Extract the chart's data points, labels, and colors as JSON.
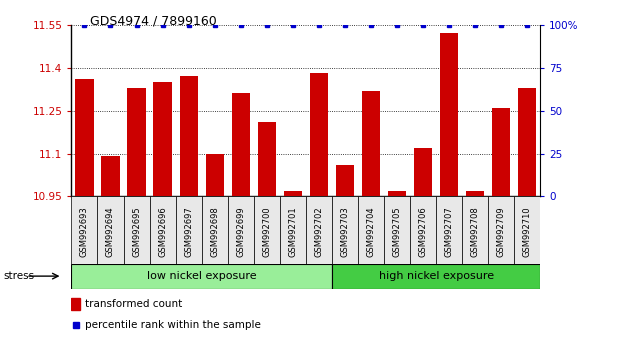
{
  "title": "GDS4974 / 7899160",
  "samples": [
    "GSM992693",
    "GSM992694",
    "GSM992695",
    "GSM992696",
    "GSM992697",
    "GSM992698",
    "GSM992699",
    "GSM992700",
    "GSM992701",
    "GSM992702",
    "GSM992703",
    "GSM992704",
    "GSM992705",
    "GSM992706",
    "GSM992707",
    "GSM992708",
    "GSM992709",
    "GSM992710"
  ],
  "values": [
    11.36,
    11.09,
    11.33,
    11.35,
    11.37,
    11.1,
    11.31,
    11.21,
    10.97,
    11.38,
    11.06,
    11.32,
    10.97,
    11.12,
    11.52,
    10.97,
    11.26,
    11.33
  ],
  "percentile": [
    100,
    100,
    100,
    100,
    100,
    100,
    100,
    100,
    100,
    100,
    100,
    100,
    100,
    100,
    100,
    100,
    100,
    100
  ],
  "ymin": 10.95,
  "ymax": 11.55,
  "yticks": [
    10.95,
    11.1,
    11.25,
    11.4,
    11.55
  ],
  "ytick_labels": [
    "10.95",
    "11.1",
    "11.25",
    "11.4",
    "11.55"
  ],
  "right_yticks": [
    0,
    25,
    50,
    75,
    100
  ],
  "right_ytick_labels": [
    "0",
    "25",
    "50",
    "75",
    "100%"
  ],
  "bar_color": "#cc0000",
  "dot_color": "#0000cc",
  "label_color_left": "#cc0000",
  "label_color_right": "#0000cc",
  "low_nickel_count": 10,
  "high_nickel_count": 8,
  "group1_label": "low nickel exposure",
  "group2_label": "high nickel exposure",
  "group1_color": "#99ee99",
  "group2_color": "#44cc44",
  "stress_label": "stress",
  "legend_bar_label": "transformed count",
  "legend_dot_label": "percentile rank within the sample",
  "grid_lines": [
    11.1,
    11.25,
    11.4
  ],
  "bg_color": "#e8e8e8",
  "plot_bg": "#ffffff"
}
